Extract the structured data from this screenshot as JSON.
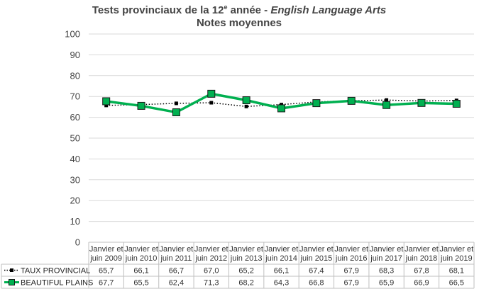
{
  "chart_data": {
    "type": "line",
    "title_line1_prefix": "Tests provinciaux de la 12",
    "title_line1_sup": "e",
    "title_line1_mid": " année - ",
    "title_line1_italic": "English Language Arts",
    "title_line2": "Notes moyennes",
    "ylim": [
      0,
      100
    ],
    "yticks": [
      0,
      10,
      20,
      30,
      40,
      50,
      60,
      70,
      80,
      90,
      100
    ],
    "grid": true,
    "legend_placement": "bottom-left in data table",
    "categories": [
      [
        "Janvier et",
        "juin 2009"
      ],
      [
        "Janvier et",
        "juin 2010"
      ],
      [
        "Janvier et",
        "juin 2011"
      ],
      [
        "Janvier et",
        "juin 2012"
      ],
      [
        "Janvier et",
        "juin 2013"
      ],
      [
        "Janvier et",
        "juin 2014"
      ],
      [
        "Janvier et",
        "juin 2015"
      ],
      [
        "Janvier et",
        "juin 2016"
      ],
      [
        "Janvier et",
        "juin 2017"
      ],
      [
        "Janvier et",
        "juin 2018"
      ],
      [
        "Janvier et",
        "juin 2019"
      ]
    ],
    "series": [
      {
        "name": "TAUX PROVINCIAL",
        "color": "#000000",
        "style": "dotted",
        "values": [
          65.7,
          66.1,
          66.7,
          67.0,
          65.2,
          66.1,
          67.4,
          67.9,
          68.3,
          67.8,
          68.1
        ],
        "labels": [
          "65,7",
          "66,1",
          "66,7",
          "67,0",
          "65,2",
          "66,1",
          "67,4",
          "67,9",
          "68,3",
          "67,8",
          "68,1"
        ]
      },
      {
        "name": "BEAUTIFUL PLAINS",
        "color": "#00b050",
        "style": "solid",
        "values": [
          67.7,
          65.5,
          62.4,
          71.3,
          68.2,
          64.3,
          66.8,
          67.9,
          65.9,
          66.9,
          66.5
        ],
        "labels": [
          "67,7",
          "65,5",
          "62,4",
          "71,3",
          "68,2",
          "64,3",
          "66,8",
          "67,9",
          "65,9",
          "66,9",
          "66,5"
        ]
      }
    ]
  }
}
